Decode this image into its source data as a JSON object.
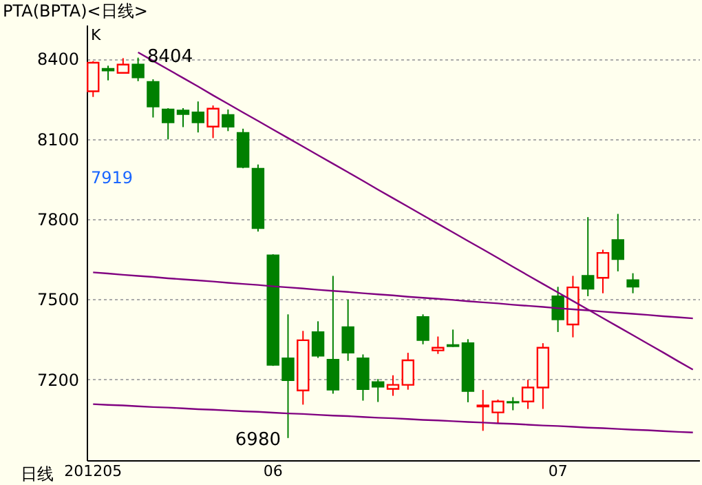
{
  "chart_data": {
    "type": "candlestick",
    "title": "PTA(BPTA)<日线>",
    "xlabel": "日线",
    "categories": [
      "201205",
      null,
      null,
      null,
      null,
      null,
      null,
      null,
      null,
      null,
      null,
      null,
      "06",
      null,
      null,
      null,
      null,
      null,
      null,
      null,
      null,
      null,
      null,
      null,
      null,
      null,
      null,
      null,
      null,
      null,
      null,
      "07",
      null,
      null,
      null,
      null,
      null,
      null,
      null,
      null,
      null
    ],
    "ohlc": [
      [
        8278,
        8391,
        8257,
        8385
      ],
      [
        8362,
        8374,
        8319,
        8356
      ],
      [
        8347,
        8402,
        8347,
        8378
      ],
      [
        8378,
        8404,
        8316,
        8330
      ],
      [
        8313,
        8323,
        8180,
        8221
      ],
      [
        8210,
        8215,
        8098,
        8162
      ],
      [
        8206,
        8215,
        8144,
        8193
      ],
      [
        8199,
        8240,
        8124,
        8162
      ],
      [
        8146,
        8225,
        8103,
        8213
      ],
      [
        8189,
        8210,
        8129,
        8146
      ],
      [
        8122,
        8138,
        7990,
        7995
      ],
      [
        7988,
        8004,
        7753,
        7766
      ],
      [
        7664,
        7668,
        7250,
        7254
      ],
      [
        7278,
        7443,
        6980,
        7197
      ],
      [
        7158,
        7381,
        7105,
        7346
      ],
      [
        7376,
        7417,
        7280,
        7288
      ],
      [
        7273,
        7587,
        7146,
        7161
      ],
      [
        7395,
        7498,
        7269,
        7300
      ],
      [
        7278,
        7293,
        7120,
        7163
      ],
      [
        7189,
        7201,
        7115,
        7172
      ],
      [
        7164,
        7215,
        7138,
        7179
      ],
      [
        7179,
        7299,
        7161,
        7271
      ],
      [
        7433,
        7443,
        7331,
        7347
      ],
      [
        7308,
        7360,
        7295,
        7318
      ],
      [
        7328,
        7386,
        7321,
        7324
      ],
      [
        7335,
        7350,
        7114,
        7156
      ],
      [
        7098,
        7160,
        7007,
        7102
      ],
      [
        7076,
        7124,
        7035,
        7117
      ],
      [
        7115,
        7133,
        7084,
        7113
      ],
      [
        7117,
        7198,
        7089,
        7169
      ],
      [
        7169,
        7335,
        7089,
        7318
      ],
      [
        7510,
        7546,
        7377,
        7424
      ],
      [
        7405,
        7587,
        7357,
        7544
      ],
      [
        7587,
        7807,
        7511,
        7539
      ],
      [
        7580,
        7685,
        7522,
        7673
      ],
      [
        7721,
        7819,
        7604,
        7650
      ],
      [
        7571,
        7597,
        7522,
        7547
      ],
      null,
      null,
      null,
      null
    ],
    "colors": [
      "#ff0000",
      "#008000",
      "#ff0000",
      "#008000",
      "#008000",
      "#008000",
      "#008000",
      "#008000",
      "#ff0000",
      "#008000",
      "#008000",
      "#008000",
      "#008000",
      "#008000",
      "#ff0000",
      "#008000",
      "#008000",
      "#008000",
      "#008000",
      "#008000",
      "#ff0000",
      "#ff0000",
      "#008000",
      "#ff0000",
      "#008000",
      "#008000",
      "#ff0000",
      "#ff0000",
      "#008000",
      "#ff0000",
      "#ff0000",
      "#008000",
      "#ff0000",
      "#008000",
      "#ff0000",
      "#008000",
      "#008000",
      null,
      null,
      null,
      null
    ],
    "series": [
      {
        "type": "line",
        "color": "#800080",
        "values": [
          null,
          null,
          null,
          8424,
          8392,
          8360,
          8328,
          8296,
          8263,
          8231,
          8199,
          8167,
          8135,
          8103,
          8071,
          8039,
          8007,
          7975,
          7943,
          7910,
          7878,
          7846,
          7814,
          7782,
          7750,
          7718,
          7686,
          7654,
          7621,
          7589,
          7557,
          7525,
          7493,
          7461,
          7429,
          7397,
          7365,
          7333,
          7301,
          7268,
          7236
        ]
      },
      {
        "type": "line",
        "color": "#800080",
        "values": [
          7600,
          7596,
          7591,
          7587,
          7583,
          7578,
          7574,
          7570,
          7566,
          7561,
          7557,
          7553,
          7548,
          7544,
          7540,
          7535,
          7531,
          7527,
          7522,
          7518,
          7514,
          7509,
          7505,
          7501,
          7497,
          7492,
          7488,
          7484,
          7479,
          7475,
          7471,
          7466,
          7462,
          7458,
          7453,
          7449,
          7445,
          7441,
          7436,
          7432,
          7428
        ]
      },
      {
        "type": "line",
        "color": "#800080",
        "values": [
          7107,
          7104,
          7102,
          7099,
          7096,
          7094,
          7091,
          7088,
          7086,
          7083,
          7080,
          7078,
          7075,
          7072,
          7070,
          7067,
          7064,
          7062,
          7059,
          7056,
          7054,
          7051,
          7048,
          7046,
          7043,
          7040,
          7038,
          7035,
          7033,
          7030,
          7027,
          7025,
          7022,
          7019,
          7017,
          7014,
          7011,
          7009,
          7006,
          7003,
          7001
        ]
      }
    ],
    "ylim": [
      6897,
      8527
    ],
    "yticks": [
      7200,
      7500,
      7800,
      8100,
      8400
    ],
    "grid": "y",
    "annotations": [
      "K",
      "8404",
      "6980",
      "7919"
    ]
  }
}
